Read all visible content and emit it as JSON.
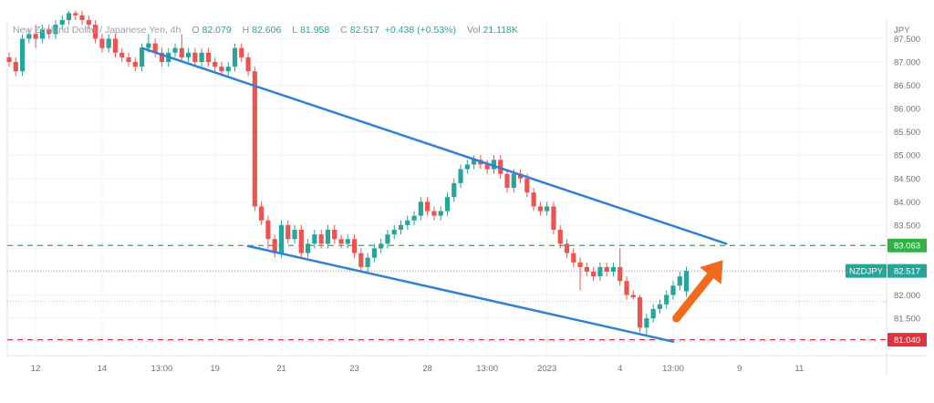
{
  "legend": {
    "title": "New Zealand Dollar / Japanese Yen, 4h",
    "open_label": "O",
    "open": "82.079",
    "high_label": "H",
    "high": "82.606",
    "low_label": "L",
    "low": "81.958",
    "close_label": "C",
    "close": "82.517",
    "change": "+0.438 (+0.53%)",
    "volume_label": "Vol",
    "volume": "21.118K"
  },
  "currency_label": "JPY",
  "symbol_badge": "NZDJPY",
  "colors": {
    "up": "#26a69a",
    "down": "#ef5350",
    "trendline": "#2f80d8",
    "resistance": "#2fb344",
    "support": "#e0323c",
    "arrow": "#f26b1d",
    "grid": "#f0f3fa"
  },
  "chart_data": {
    "type": "candlestick",
    "ylim": [
      80.7,
      87.9
    ],
    "y_ticks": [
      "87.500",
      "87.000",
      "86.500",
      "86.000",
      "85.500",
      "85.000",
      "84.500",
      "84.000",
      "83.500",
      "83.000",
      "82.500",
      "82.000",
      "81.500",
      "81.000"
    ],
    "x_ticks": [
      "12",
      "14",
      "13:00",
      "19",
      "21",
      "23",
      "28",
      "13:00",
      "2023",
      "4",
      "13:00",
      "9",
      "11"
    ],
    "price_levels": [
      {
        "name": "resistance",
        "value": 83.063,
        "label": "83.063"
      },
      {
        "name": "last-price",
        "value": 82.517,
        "label": "82.517"
      },
      {
        "name": "minor-level",
        "value": 81.86,
        "label": ""
      },
      {
        "name": "support",
        "value": 81.04,
        "label": "81.040"
      }
    ],
    "trendlines": [
      {
        "name": "upper-trendline",
        "from": [
          20,
          87.3
        ],
        "to": [
          108,
          83.1
        ]
      },
      {
        "name": "lower-trendline",
        "from": [
          36,
          83.05
        ],
        "to": [
          100,
          81.0
        ]
      }
    ],
    "arrow": {
      "from": [
        100.5,
        81.5
      ],
      "to": [
        107.5,
        82.75
      ]
    },
    "candles": [
      [
        87.1,
        87.0,
        87.2,
        86.9
      ],
      [
        87.0,
        86.8,
        87.1,
        86.7
      ],
      [
        86.8,
        87.5,
        87.6,
        86.7
      ],
      [
        87.5,
        87.6,
        87.7,
        87.4
      ],
      [
        87.6,
        87.5,
        87.8,
        87.3
      ],
      [
        87.5,
        87.7,
        87.8,
        87.4
      ],
      [
        87.7,
        87.6,
        87.8,
        87.5
      ],
      [
        87.6,
        87.8,
        87.9,
        87.5
      ],
      [
        87.8,
        87.9,
        88.0,
        87.7
      ],
      [
        87.9,
        88.05,
        88.1,
        87.8
      ],
      [
        88.05,
        88.0,
        88.1,
        87.9
      ],
      [
        88.0,
        87.9,
        88.1,
        87.8
      ],
      [
        87.9,
        87.8,
        88.0,
        87.7
      ],
      [
        87.8,
        87.5,
        87.9,
        87.4
      ],
      [
        87.5,
        87.3,
        87.6,
        87.2
      ],
      [
        87.3,
        87.5,
        87.6,
        87.2
      ],
      [
        87.5,
        87.2,
        87.6,
        87.1
      ],
      [
        87.2,
        87.1,
        87.3,
        87.0
      ],
      [
        87.1,
        87.0,
        87.2,
        86.9
      ],
      [
        87.0,
        86.9,
        87.1,
        86.8
      ],
      [
        86.9,
        87.3,
        87.4,
        86.8
      ],
      [
        87.3,
        87.4,
        87.6,
        87.2
      ],
      [
        87.4,
        87.2,
        87.5,
        87.1
      ],
      [
        87.2,
        87.0,
        87.3,
        86.9
      ],
      [
        87.0,
        87.2,
        87.3,
        86.9
      ],
      [
        87.2,
        87.3,
        87.4,
        87.1
      ],
      [
        87.3,
        87.1,
        87.6,
        87.0
      ],
      [
        87.1,
        87.2,
        87.3,
        87.0
      ],
      [
        87.2,
        87.0,
        87.3,
        86.9
      ],
      [
        87.0,
        87.2,
        87.3,
        86.9
      ],
      [
        87.2,
        87.0,
        87.3,
        86.9
      ],
      [
        87.0,
        86.9,
        87.1,
        86.8
      ],
      [
        86.9,
        86.8,
        87.0,
        86.7
      ],
      [
        86.8,
        86.9,
        87.0,
        86.7
      ],
      [
        86.9,
        87.3,
        87.4,
        86.8
      ],
      [
        87.3,
        87.1,
        87.4,
        87.0
      ],
      [
        87.1,
        86.8,
        87.2,
        86.7
      ],
      [
        86.8,
        83.9,
        86.9,
        83.8
      ],
      [
        83.9,
        83.6,
        84.0,
        83.5
      ],
      [
        83.6,
        83.2,
        83.7,
        83.0
      ],
      [
        83.2,
        82.9,
        83.3,
        82.8
      ],
      [
        82.9,
        83.5,
        83.6,
        82.8
      ],
      [
        83.5,
        83.2,
        83.6,
        83.1
      ],
      [
        83.2,
        83.4,
        83.5,
        83.1
      ],
      [
        83.4,
        82.9,
        83.5,
        82.8
      ],
      [
        82.9,
        83.1,
        83.2,
        82.8
      ],
      [
        83.1,
        83.3,
        83.4,
        83.0
      ],
      [
        83.3,
        83.1,
        83.4,
        83.0
      ],
      [
        83.1,
        83.4,
        83.5,
        83.0
      ],
      [
        83.4,
        83.2,
        83.5,
        83.1
      ],
      [
        83.2,
        83.1,
        83.3,
        83.0
      ],
      [
        83.1,
        83.2,
        83.3,
        83.0
      ],
      [
        83.2,
        82.9,
        83.3,
        82.8
      ],
      [
        82.9,
        82.6,
        83.0,
        82.5
      ],
      [
        82.6,
        82.8,
        82.9,
        82.5
      ],
      [
        82.8,
        83.0,
        83.1,
        82.7
      ],
      [
        83.0,
        83.1,
        83.2,
        82.9
      ],
      [
        83.1,
        83.3,
        83.4,
        83.0
      ],
      [
        83.3,
        83.4,
        83.5,
        83.2
      ],
      [
        83.4,
        83.5,
        83.6,
        83.3
      ],
      [
        83.5,
        83.6,
        83.7,
        83.4
      ],
      [
        83.6,
        83.7,
        83.8,
        83.5
      ],
      [
        83.7,
        84.0,
        84.1,
        83.6
      ],
      [
        84.0,
        83.8,
        84.1,
        83.7
      ],
      [
        83.8,
        83.7,
        83.9,
        83.6
      ],
      [
        83.7,
        83.8,
        83.9,
        83.6
      ],
      [
        83.8,
        84.1,
        84.2,
        83.7
      ],
      [
        84.1,
        84.4,
        84.5,
        84.0
      ],
      [
        84.4,
        84.7,
        84.8,
        84.3
      ],
      [
        84.7,
        84.8,
        84.9,
        84.6
      ],
      [
        84.8,
        84.9,
        85.0,
        84.7
      ],
      [
        84.9,
        84.8,
        85.0,
        84.7
      ],
      [
        84.8,
        84.7,
        84.9,
        84.6
      ],
      [
        84.7,
        84.9,
        85.0,
        84.6
      ],
      [
        84.9,
        84.6,
        85.0,
        84.5
      ],
      [
        84.6,
        84.3,
        84.7,
        84.2
      ],
      [
        84.3,
        84.6,
        84.7,
        84.2
      ],
      [
        84.6,
        84.5,
        84.7,
        84.4
      ],
      [
        84.5,
        84.2,
        84.6,
        84.1
      ],
      [
        84.2,
        83.9,
        84.3,
        83.8
      ],
      [
        83.9,
        83.8,
        84.0,
        83.7
      ],
      [
        83.8,
        83.9,
        84.0,
        83.7
      ],
      [
        83.9,
        83.4,
        84.0,
        83.3
      ],
      [
        83.4,
        83.1,
        83.5,
        83.0
      ],
      [
        83.1,
        82.9,
        83.2,
        82.8
      ],
      [
        82.9,
        82.7,
        83.0,
        82.6
      ],
      [
        82.7,
        82.6,
        82.8,
        82.1
      ],
      [
        82.6,
        82.5,
        82.7,
        82.4
      ],
      [
        82.5,
        82.4,
        82.6,
        82.3
      ],
      [
        82.4,
        82.6,
        82.7,
        82.3
      ],
      [
        82.6,
        82.5,
        82.7,
        82.4
      ],
      [
        82.5,
        82.6,
        82.7,
        82.4
      ],
      [
        82.6,
        82.3,
        83.0,
        82.2
      ],
      [
        82.3,
        82.0,
        82.4,
        81.9
      ],
      [
        82.0,
        81.95,
        82.1,
        81.9
      ],
      [
        81.95,
        81.3,
        82.0,
        81.2
      ],
      [
        81.3,
        81.5,
        81.6,
        81.1
      ],
      [
        81.5,
        81.7,
        81.8,
        81.4
      ],
      [
        81.7,
        81.8,
        81.9,
        81.6
      ],
      [
        81.8,
        82.0,
        82.1,
        81.7
      ],
      [
        82.0,
        82.2,
        82.3,
        81.9
      ],
      [
        82.2,
        82.4,
        82.5,
        82.1
      ],
      [
        82.079,
        82.517,
        82.606,
        81.958
      ]
    ]
  }
}
